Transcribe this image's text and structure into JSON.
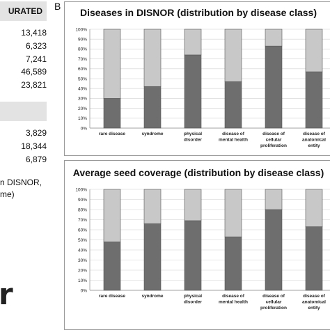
{
  "table": {
    "header1": "URATED",
    "group1": [
      "13,418",
      "6,323",
      "7,241",
      "46,589",
      "23,821"
    ],
    "group2": [
      "3,829",
      "18,344",
      "6,879"
    ],
    "note_line1": "n DISNOR,",
    "note_line2": "me)"
  },
  "logo_fragment": "r",
  "panel_label": "B",
  "colors": {
    "dark": "#6e6e6e",
    "light": "#c8c8c8",
    "bar_border": "#555555",
    "grid": "#d0d0d0"
  },
  "chart_data": [
    {
      "type": "bar",
      "stacked": true,
      "title": "Diseases in DISNOR (distribution by disease class)",
      "categories": [
        [
          "rare disease"
        ],
        [
          "syndrome"
        ],
        [
          "physical",
          "disorder"
        ],
        [
          "disease of",
          "mental health"
        ],
        [
          "disease of",
          "cellular",
          "proliferation"
        ],
        [
          "disease of",
          "anatomical",
          "entity"
        ]
      ],
      "series": [
        {
          "values": [
            30,
            42,
            74,
            47,
            83,
            57
          ]
        },
        {
          "values": [
            70,
            58,
            26,
            53,
            17,
            43
          ]
        }
      ],
      "ylim": [
        0,
        100
      ],
      "yticks": [
        "0%",
        "10%",
        "20%",
        "30%",
        "40%",
        "50%",
        "60%",
        "70%",
        "80%",
        "90%",
        "100%"
      ],
      "grid": true
    },
    {
      "type": "bar",
      "stacked": true,
      "title": "Average seed coverage (distribution by disease class)",
      "categories": [
        [
          "rare disease"
        ],
        [
          "syndrome"
        ],
        [
          "physical",
          "disorder"
        ],
        [
          "disease of",
          "mental health"
        ],
        [
          "disease of",
          "cellular",
          "proliferation"
        ],
        [
          "disease of",
          "anatomical",
          "entity"
        ]
      ],
      "series": [
        {
          "values": [
            48,
            66,
            69,
            53,
            80,
            63
          ]
        },
        {
          "values": [
            52,
            34,
            31,
            47,
            20,
            37
          ]
        }
      ],
      "ylim": [
        0,
        100
      ],
      "yticks": [
        "0%",
        "10%",
        "20%",
        "30%",
        "40%",
        "50%",
        "60%",
        "70%",
        "80%",
        "90%",
        "100%"
      ],
      "grid": true
    }
  ]
}
